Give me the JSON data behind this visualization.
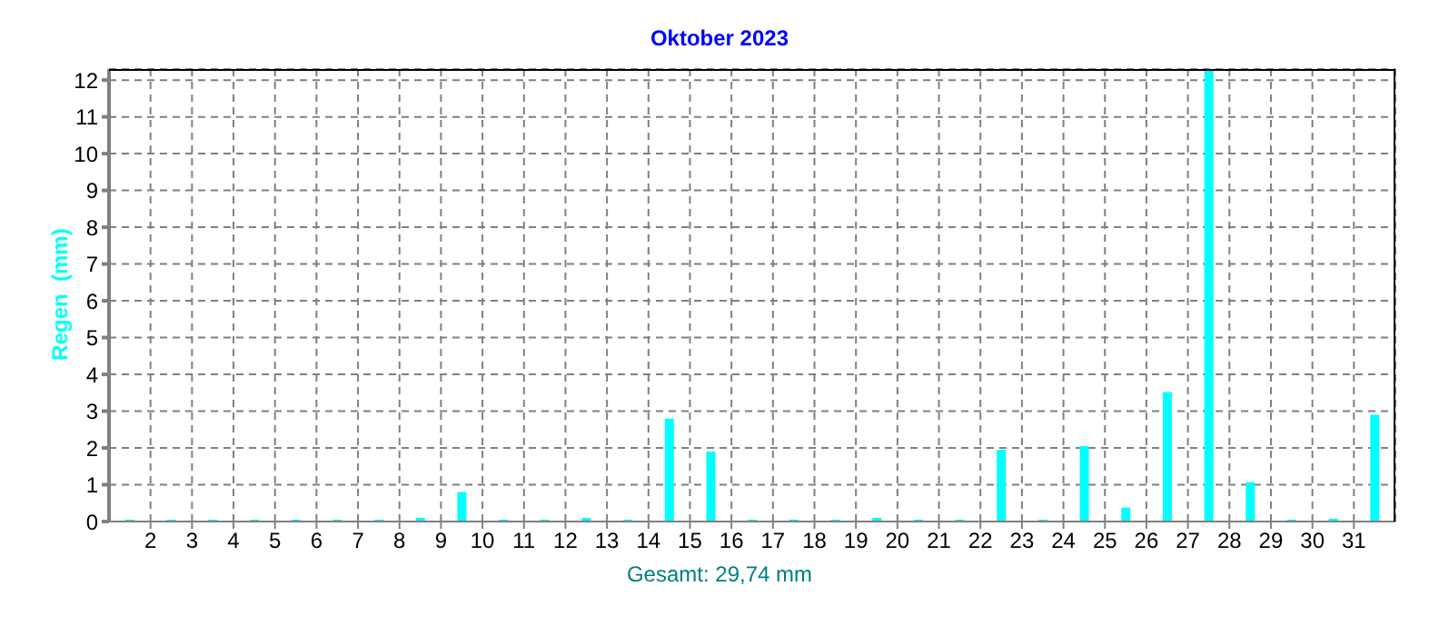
{
  "chart_data": {
    "type": "bar",
    "title": "Oktober 2023",
    "ylabel": "Regen  (mm)",
    "annotations": [
      "Gesamt: 29,74 mm"
    ],
    "x": [
      1.5,
      2.5,
      3.5,
      4.5,
      5.5,
      6.5,
      7.5,
      8.5,
      9.5,
      10.5,
      11.5,
      12.5,
      13.5,
      14.5,
      15.5,
      16.5,
      17.5,
      18.5,
      19.5,
      20.5,
      21.5,
      22.5,
      23.5,
      24.5,
      25.5,
      26.5,
      27.5,
      28.5,
      29.5,
      30.5,
      31.5
    ],
    "values": [
      0,
      0,
      0,
      0,
      0,
      0,
      0,
      0.1,
      0.8,
      0,
      0,
      0.1,
      0,
      2.8,
      1.9,
      0,
      0,
      0,
      0.1,
      0,
      0,
      1.95,
      0,
      2.05,
      0.38,
      3.52,
      12.3,
      1.07,
      0,
      0.08,
      2.9
    ],
    "color": "#00ffff",
    "xlim": [
      1,
      32
    ],
    "xticks": [
      2,
      3,
      4,
      5,
      6,
      7,
      8,
      9,
      10,
      11,
      12,
      13,
      14,
      15,
      16,
      17,
      18,
      19,
      20,
      21,
      22,
      23,
      24,
      25,
      26,
      27,
      28,
      29,
      30,
      31
    ],
    "ylim": [
      0,
      12.3
    ],
    "yticks": [
      0,
      1,
      2,
      3,
      4,
      5,
      6,
      7,
      8,
      9,
      10,
      11,
      12
    ],
    "grid": true
  }
}
